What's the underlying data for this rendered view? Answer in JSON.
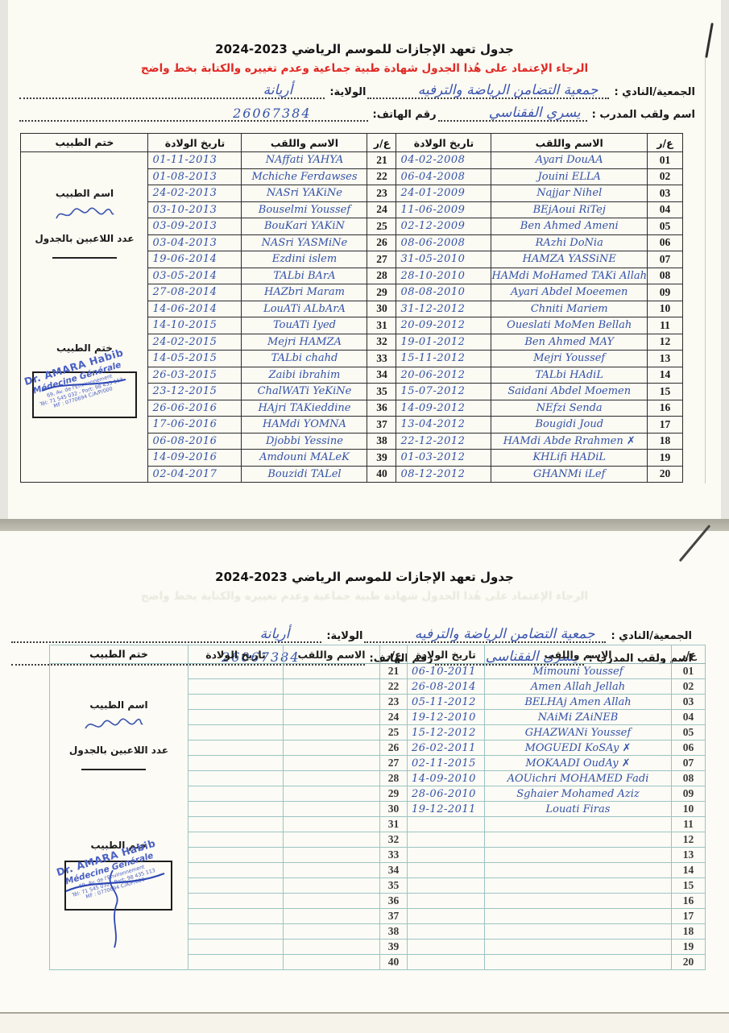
{
  "doc": {
    "title": "جدول تعهد الإجازات للموسم الرياضي  2023-2024",
    "notice": "الرجاء الإعتماد على هُذا الجدول شهادة طبية جماعية وعدم تغييره والكتابة بخط واضح",
    "labels": {
      "club": "الجمعية/النادي :",
      "state": "الولاية:",
      "coach": "اسم ولقب المدرب :",
      "phone": "رقم الهاتف:",
      "col_num": "ع/ر",
      "col_name": "الاسم واللقب",
      "col_birth": "تاريخ الولادة",
      "col_stamp": "ختم الطبيب",
      "doctor_name": "اسم الطبيب",
      "players_count": "عدد اللاعبين بالجدول",
      "doctor_stamp": "ختم الطبيب"
    },
    "stamp": {
      "line1": "Dr. AMARA Habib",
      "line2": "Médecine Générale",
      "line3": "69, Av. de l'Environnement",
      "line4": "Tél: 71 545 032 - Port: 98 435 113",
      "line5": "MF : 0770694 C/A/P/000"
    },
    "colors": {
      "handwriting_blue": "#3352a8",
      "stamp_blue": "#4b61c4",
      "notice_red": "#e02823",
      "grid_dark": "#2b2b2b",
      "grid_teal": "#9cc4c2"
    }
  },
  "page1": {
    "club_value": "جمعية التضامن الرياضة والترفيه",
    "state_value": "أريانة",
    "coach_value": "يسري الفقناسي",
    "phone_value": "26067384",
    "rows_right": [
      {
        "n": "01",
        "name": "Ayari DouAA",
        "date": "04-02-2008"
      },
      {
        "n": "02",
        "name": "Jouini ELLA",
        "date": "06-04-2008"
      },
      {
        "n": "03",
        "name": "Najjar Nihel",
        "date": "24-01-2009"
      },
      {
        "n": "04",
        "name": "BEjAoui RiTej",
        "date": "11-06-2009"
      },
      {
        "n": "05",
        "name": "Ben Ahmed Ameni",
        "date": "02-12-2009"
      },
      {
        "n": "06",
        "name": "RAzhi DoNia",
        "date": "08-06-2008"
      },
      {
        "n": "07",
        "name": "HAMZA YASSiNE",
        "date": "31-05-2010"
      },
      {
        "n": "08",
        "name": "HAMdi MoHamed TAKi Allah",
        "date": "28-10-2010"
      },
      {
        "n": "09",
        "name": "Ayari Abdel Moeemen",
        "date": "08-08-2010"
      },
      {
        "n": "10",
        "name": "Chniti Mariem",
        "date": "31-12-2012"
      },
      {
        "n": "11",
        "name": "Oueslati MoMen Bellah",
        "date": "20-09-2012"
      },
      {
        "n": "12",
        "name": "Ben Ahmed MAY",
        "date": "19-01-2012"
      },
      {
        "n": "13",
        "name": "Mejri Youssef",
        "date": "15-11-2012"
      },
      {
        "n": "14",
        "name": "TALbi HAdiL",
        "date": "20-06-2012"
      },
      {
        "n": "15",
        "name": "Saidani Abdel Moemen",
        "date": "15-07-2012"
      },
      {
        "n": "16",
        "name": "NEfzi Senda",
        "date": "14-09-2012"
      },
      {
        "n": "17",
        "name": "Bougidi Joud",
        "date": "13-04-2012"
      },
      {
        "n": "18",
        "name": "HAMdi Abde Rrahmen ✗",
        "date": "22-12-2012"
      },
      {
        "n": "19",
        "name": "KHLifi HADiL",
        "date": "01-03-2012"
      },
      {
        "n": "20",
        "name": "GHANMi iLef",
        "date": "08-12-2012"
      }
    ],
    "rows_left": [
      {
        "n": "21",
        "name": "NAffati YAHYA",
        "date": "01-11-2013"
      },
      {
        "n": "22",
        "name": "Mchiche Ferdawses",
        "date": "01-08-2013"
      },
      {
        "n": "23",
        "name": "NASri YAKiNe",
        "date": "24-02-2013"
      },
      {
        "n": "24",
        "name": "Bouselmi Youssef",
        "date": "03-10-2013"
      },
      {
        "n": "25",
        "name": "BouKari YAKiN",
        "date": "03-09-2013"
      },
      {
        "n": "26",
        "name": "NASri YASMiNe",
        "date": "03-04-2013"
      },
      {
        "n": "27",
        "name": "Ezdini islem",
        "date": "19-06-2014"
      },
      {
        "n": "28",
        "name": "TALbi BArA",
        "date": "03-05-2014"
      },
      {
        "n": "29",
        "name": "HAZbri Maram",
        "date": "27-08-2014"
      },
      {
        "n": "30",
        "name": "LouATi ALbArA",
        "date": "14-06-2014"
      },
      {
        "n": "31",
        "name": "TouATi Iyed",
        "date": "14-10-2015"
      },
      {
        "n": "32",
        "name": "Mejri HAMZA",
        "date": "24-02-2015"
      },
      {
        "n": "33",
        "name": "TALbi chahd",
        "date": "14-05-2015"
      },
      {
        "n": "34",
        "name": "Zaibi ibrahim",
        "date": "26-03-2015"
      },
      {
        "n": "35",
        "name": "ChalWATi YeKiNe",
        "date": "23-12-2015"
      },
      {
        "n": "36",
        "name": "HAjri TAKieddine",
        "date": "26-06-2016"
      },
      {
        "n": "37",
        "name": "HAMdi YOMNA",
        "date": "17-06-2016"
      },
      {
        "n": "38",
        "name": "Djobbi Yessine",
        "date": "06-08-2016"
      },
      {
        "n": "39",
        "name": "Amdouni MALeK",
        "date": "14-09-2016"
      },
      {
        "n": "40",
        "name": "Bouzidi TALel",
        "date": "02-04-2017"
      }
    ]
  },
  "page2": {
    "club_value": "جمعية التضامن الرياضة والترفيه",
    "state_value": "أريانة",
    "coach_value": "يسري الفقناسي",
    "phone_value": "26067384",
    "rows_right": [
      {
        "n": "01",
        "name": "Mimouni Youssef",
        "date": "06-10-2011"
      },
      {
        "n": "02",
        "name": "Amen Allah Jellah",
        "date": "26-08-2014"
      },
      {
        "n": "03",
        "name": "BELHAj Amen Allah",
        "date": "05-11-2012"
      },
      {
        "n": "04",
        "name": "NAiMi ZAiNEB",
        "date": "19-12-2010"
      },
      {
        "n": "05",
        "name": "GHAZWANi Youssef",
        "date": "15-12-2012"
      },
      {
        "n": "06",
        "name": "MOGUEDI KoSAy  ✗",
        "date": "26-02-2011"
      },
      {
        "n": "07",
        "name": "MOKAADI OudAy  ✗",
        "date": "02-11-2015"
      },
      {
        "n": "08",
        "name": "AOUichri MOHAMED Fadi",
        "date": "14-09-2010"
      },
      {
        "n": "09",
        "name": "Sghaier Mohamed Aziz",
        "date": "28-06-2010"
      },
      {
        "n": "10",
        "name": "Louati Firas",
        "date": "19-12-2011"
      },
      {
        "n": "11",
        "name": "",
        "date": ""
      },
      {
        "n": "12",
        "name": "",
        "date": ""
      },
      {
        "n": "13",
        "name": "",
        "date": ""
      },
      {
        "n": "14",
        "name": "",
        "date": ""
      },
      {
        "n": "15",
        "name": "",
        "date": ""
      },
      {
        "n": "16",
        "name": "",
        "date": ""
      },
      {
        "n": "17",
        "name": "",
        "date": ""
      },
      {
        "n": "18",
        "name": "",
        "date": ""
      },
      {
        "n": "19",
        "name": "",
        "date": ""
      },
      {
        "n": "20",
        "name": "",
        "date": ""
      }
    ],
    "rows_left": [
      {
        "n": "21",
        "name": "",
        "date": ""
      },
      {
        "n": "22",
        "name": "",
        "date": ""
      },
      {
        "n": "23",
        "name": "",
        "date": ""
      },
      {
        "n": "24",
        "name": "",
        "date": ""
      },
      {
        "n": "25",
        "name": "",
        "date": ""
      },
      {
        "n": "26",
        "name": "",
        "date": ""
      },
      {
        "n": "27",
        "name": "",
        "date": ""
      },
      {
        "n": "28",
        "name": "",
        "date": ""
      },
      {
        "n": "29",
        "name": "",
        "date": ""
      },
      {
        "n": "30",
        "name": "",
        "date": ""
      },
      {
        "n": "31",
        "name": "",
        "date": ""
      },
      {
        "n": "32",
        "name": "",
        "date": ""
      },
      {
        "n": "33",
        "name": "",
        "date": ""
      },
      {
        "n": "34",
        "name": "",
        "date": ""
      },
      {
        "n": "35",
        "name": "",
        "date": ""
      },
      {
        "n": "36",
        "name": "",
        "date": ""
      },
      {
        "n": "37",
        "name": "",
        "date": ""
      },
      {
        "n": "38",
        "name": "",
        "date": ""
      },
      {
        "n": "39",
        "name": "",
        "date": ""
      },
      {
        "n": "40",
        "name": "",
        "date": ""
      }
    ]
  }
}
